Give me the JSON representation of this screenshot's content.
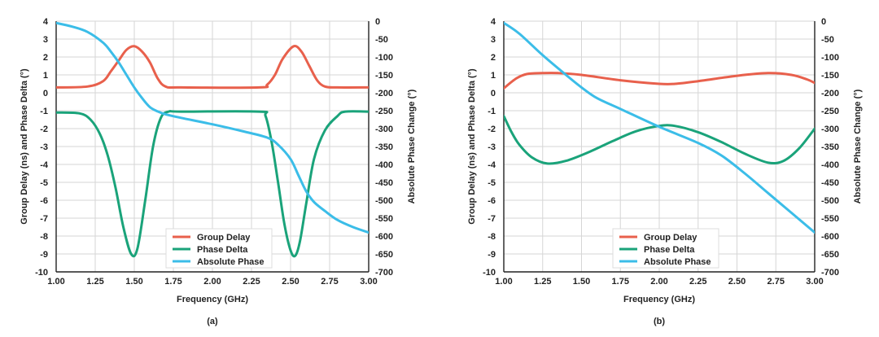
{
  "chart_data": [
    {
      "type": "line",
      "panel_label": "(a)",
      "xlabel": "Frequency (GHz)",
      "ylabel_left": "Group Delay (ns) and Phase Delta (°)",
      "ylabel_right": "Absolute Phase Change (°)",
      "xlim": [
        1.0,
        3.0
      ],
      "ylim_left": [
        -10,
        4
      ],
      "ylim_right": [
        -700,
        0
      ],
      "xticks": [
        "1.00",
        "1.25",
        "1.50",
        "1.75",
        "2.00",
        "2.25",
        "2.50",
        "2.75",
        "3.00"
      ],
      "yticks_left": [
        "4",
        "3",
        "2",
        "1",
        "0",
        "-1",
        "-2",
        "-3",
        "-4",
        "-5",
        "-6",
        "-7",
        "-8",
        "-9",
        "-10"
      ],
      "yticks_right": [
        "0",
        "-50",
        "-100",
        "-150",
        "-200",
        "-250",
        "-300",
        "-350",
        "-400",
        "-450",
        "-500",
        "-550",
        "-600",
        "-650",
        "-700"
      ],
      "grid": true,
      "legend_position": "bottom-center",
      "series": [
        {
          "name": "Group Delay",
          "axis": "left",
          "color": "#e8604c",
          "x": [
            1.0,
            1.2,
            1.3,
            1.35,
            1.4,
            1.45,
            1.5,
            1.55,
            1.6,
            1.65,
            1.7,
            1.8,
            2.3,
            2.35,
            2.4,
            2.45,
            2.52,
            2.57,
            2.62,
            2.67,
            2.72,
            2.8,
            3.0
          ],
          "y": [
            0.3,
            0.35,
            0.65,
            1.2,
            1.8,
            2.4,
            2.6,
            2.3,
            1.7,
            0.8,
            0.35,
            0.3,
            0.3,
            0.45,
            1.0,
            1.9,
            2.6,
            2.3,
            1.5,
            0.7,
            0.35,
            0.3,
            0.3
          ]
        },
        {
          "name": "Phase Delta",
          "axis": "left",
          "color": "#1aa37a",
          "x": [
            1.0,
            1.15,
            1.22,
            1.28,
            1.33,
            1.38,
            1.43,
            1.48,
            1.52,
            1.57,
            1.62,
            1.67,
            1.72,
            1.8,
            2.3,
            2.34,
            2.38,
            2.42,
            2.46,
            2.5,
            2.53,
            2.56,
            2.6,
            2.65,
            2.72,
            2.8,
            2.85,
            3.0
          ],
          "y": [
            -1.1,
            -1.15,
            -1.5,
            -2.3,
            -3.5,
            -5.3,
            -7.5,
            -9.0,
            -8.7,
            -6.0,
            -3.0,
            -1.4,
            -1.05,
            -1.05,
            -1.05,
            -1.3,
            -2.8,
            -5.0,
            -7.3,
            -8.8,
            -9.1,
            -8.3,
            -6.2,
            -3.7,
            -2.1,
            -1.3,
            -1.05,
            -1.05
          ]
        },
        {
          "name": "Absolute Phase",
          "axis": "right",
          "color": "#3bbde8",
          "x": [
            1.0,
            1.1,
            1.2,
            1.3,
            1.35,
            1.4,
            1.45,
            1.5,
            1.55,
            1.6,
            1.65,
            1.7,
            1.8,
            2.0,
            2.2,
            2.35,
            2.42,
            2.5,
            2.55,
            2.6,
            2.65,
            2.72,
            2.8,
            2.9,
            3.0
          ],
          "y": [
            -5,
            -15,
            -30,
            -60,
            -85,
            -115,
            -150,
            -185,
            -215,
            -240,
            -252,
            -260,
            -270,
            -288,
            -308,
            -325,
            -345,
            -385,
            -430,
            -475,
            -505,
            -530,
            -555,
            -575,
            -590
          ]
        }
      ]
    },
    {
      "type": "line",
      "panel_label": "(b)",
      "xlabel": "Frequency (GHz)",
      "ylabel_left": "Group Delay (ns) and Phase Delta (°)",
      "ylabel_right": "Absolute Phase Change (°)",
      "xlim": [
        1.0,
        3.0
      ],
      "ylim_left": [
        -10,
        4
      ],
      "ylim_right": [
        -700,
        0
      ],
      "xticks": [
        "1.00",
        "1.25",
        "1.50",
        "1.75",
        "2.00",
        "2.25",
        "2.50",
        "2.75",
        "3.00"
      ],
      "yticks_left": [
        "4",
        "3",
        "2",
        "1",
        "0",
        "-1",
        "-2",
        "-3",
        "-4",
        "-5",
        "-6",
        "-7",
        "-8",
        "-9",
        "-10"
      ],
      "yticks_right": [
        "0",
        "-50",
        "-100",
        "-150",
        "-200",
        "-250",
        "-300",
        "-350",
        "-400",
        "-450",
        "-500",
        "-550",
        "-600",
        "-650",
        "-700"
      ],
      "grid": true,
      "legend_position": "bottom-center",
      "series": [
        {
          "name": "Group Delay",
          "axis": "left",
          "color": "#e8604c",
          "x": [
            1.0,
            1.08,
            1.15,
            1.25,
            1.35,
            1.5,
            1.75,
            2.0,
            2.1,
            2.25,
            2.5,
            2.7,
            2.85,
            2.95,
            3.0
          ],
          "y": [
            0.25,
            0.8,
            1.05,
            1.1,
            1.1,
            1.0,
            0.7,
            0.5,
            0.5,
            0.65,
            0.95,
            1.1,
            1.0,
            0.75,
            0.55
          ]
        },
        {
          "name": "Phase Delta",
          "axis": "left",
          "color": "#1aa37a",
          "x": [
            1.0,
            1.05,
            1.1,
            1.18,
            1.28,
            1.4,
            1.55,
            1.7,
            1.85,
            2.0,
            2.1,
            2.25,
            2.4,
            2.55,
            2.7,
            2.8,
            2.9,
            3.0
          ],
          "y": [
            -1.3,
            -2.2,
            -2.9,
            -3.6,
            -3.95,
            -3.8,
            -3.3,
            -2.7,
            -2.15,
            -1.85,
            -1.85,
            -2.2,
            -2.75,
            -3.4,
            -3.9,
            -3.8,
            -3.1,
            -2.0
          ]
        },
        {
          "name": "Absolute Phase",
          "axis": "right",
          "color": "#3bbde8",
          "x": [
            1.0,
            1.1,
            1.25,
            1.4,
            1.5,
            1.6,
            1.75,
            2.0,
            2.25,
            2.4,
            2.55,
            2.7,
            2.85,
            3.0
          ],
          "y": [
            -5,
            -35,
            -95,
            -150,
            -185,
            -215,
            -245,
            -295,
            -340,
            -375,
            -425,
            -480,
            -535,
            -590
          ]
        }
      ]
    }
  ]
}
